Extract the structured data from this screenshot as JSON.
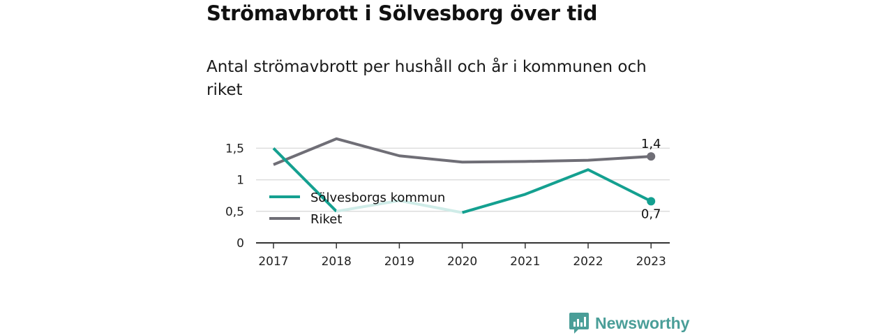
{
  "title": "Strömavbrott i Sölvesborg över tid",
  "subtitle": "Antal strömavbrott per hushåll och år i kommunen och riket",
  "brand": {
    "name": "Newsworthy",
    "color": "#4a9e98",
    "icon": "bar-chart-logo-icon"
  },
  "colors": {
    "kommun": "#14a090",
    "kommun_faded": "#cfece8",
    "riket": "#6f6e76",
    "grid": "#dddddd",
    "axis": "#333333"
  },
  "chart_data": {
    "type": "line",
    "x": [
      "2017",
      "2018",
      "2019",
      "2020",
      "2021",
      "2022",
      "2023"
    ],
    "ylim": [
      0,
      1.6
    ],
    "yticks": [
      0,
      0.5,
      1,
      1.5
    ],
    "ytick_labels": [
      "0",
      "0,5",
      "1",
      "1,5"
    ],
    "grid": true,
    "legend_position": "left, inside plot",
    "series": [
      {
        "name": "Sölvesborgs kommun",
        "values": [
          1.5,
          0.5,
          0.67,
          0.48,
          0.77,
          1.16,
          0.66
        ],
        "end_label": "0,7",
        "faded_segments": [
          [
            1,
            3
          ]
        ]
      },
      {
        "name": "Riket",
        "values": [
          1.24,
          1.65,
          1.38,
          1.28,
          1.29,
          1.31,
          1.37
        ],
        "end_label": "1,4"
      }
    ]
  }
}
